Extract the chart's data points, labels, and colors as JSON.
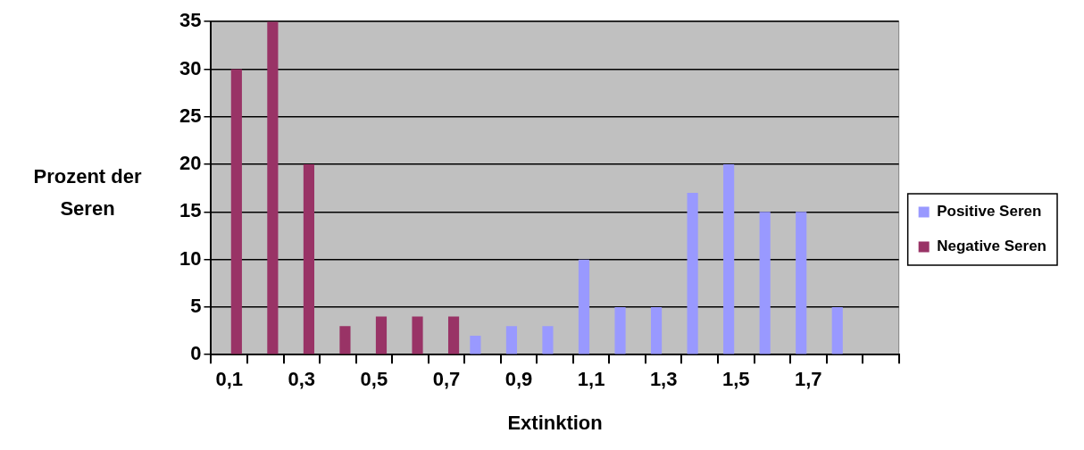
{
  "chart_data": {
    "type": "bar",
    "xlabel": "Extinktion",
    "ylabel": "Prozent der Seren",
    "categories": [
      "0,1",
      null,
      "0,3",
      null,
      "0,5",
      null,
      "0,7",
      null,
      "0,9",
      null,
      "1,1",
      null,
      "1,3",
      null,
      "1,5",
      null,
      "1,7",
      null,
      null
    ],
    "series": [
      {
        "name": "Positive Seren",
        "color": "#9999ff",
        "values": [
          0,
          0,
          0,
          0,
          0,
          0,
          0,
          2,
          3,
          3,
          10,
          5,
          5,
          17,
          20,
          15,
          15,
          5,
          null
        ]
      },
      {
        "name": "Negative Seren",
        "color": "#993366",
        "values": [
          30,
          35,
          20,
          3,
          4,
          4,
          4,
          0,
          0,
          0,
          0,
          0,
          0,
          0,
          0,
          0,
          0,
          0,
          null
        ]
      }
    ],
    "ylim": [
      0,
      35
    ],
    "yticks": [
      0,
      5,
      10,
      15,
      20,
      25,
      30,
      35
    ],
    "grid": "y",
    "legend": "right"
  }
}
